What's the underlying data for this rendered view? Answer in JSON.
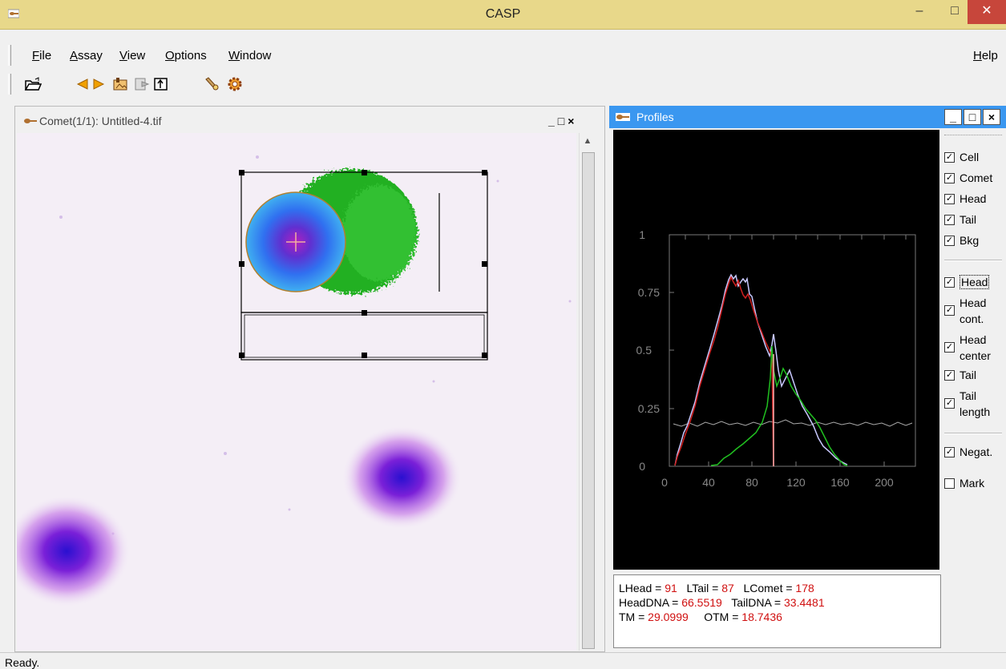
{
  "app": {
    "title": "CASP"
  },
  "window_buttons": {
    "minimize": "–",
    "maximize": "□",
    "close": "✕"
  },
  "menu": {
    "left": [
      {
        "label": "File",
        "accel": "F",
        "rest": "ile"
      },
      {
        "label": "Assay",
        "accel": "A",
        "rest": "ssay"
      },
      {
        "label": "View",
        "accel": "V",
        "rest": "iew"
      },
      {
        "label": "Options",
        "accel": "O",
        "rest": "ptions"
      },
      {
        "label": "Window",
        "accel": "W",
        "rest": "indow"
      }
    ],
    "help": {
      "label": "Help",
      "accel": "H",
      "rest": "elp"
    }
  },
  "toolbar": {
    "icons": [
      "open-folder-icon",
      "prev-arrow-icon",
      "next-arrow-icon",
      "image-icon",
      "copy-icon",
      "export-icon",
      "tools-icon",
      "settings-gear-icon"
    ]
  },
  "comet_window": {
    "title": "Comet(1/1): Untitled-4.tif",
    "controls": "_□×"
  },
  "profiles_window": {
    "title": "Profiles",
    "controls": [
      "_",
      "□",
      "×"
    ]
  },
  "plot": {
    "y_ticks": [
      "0",
      "0.25",
      "0.5",
      "0.75",
      "1"
    ],
    "x_ticks": [
      "0",
      "40",
      "80",
      "120",
      "160",
      "200"
    ],
    "colors": {
      "comet": "#c8c8ff",
      "head": "#d02020",
      "tail": "#20c020",
      "bkg": "#aaaaaa"
    }
  },
  "checkboxes": {
    "group1": [
      {
        "label": "Cell",
        "checked": true
      },
      {
        "label": "Comet",
        "checked": true
      },
      {
        "label": "Head",
        "checked": true
      },
      {
        "label": "Tail",
        "checked": true
      },
      {
        "label": "Bkg",
        "checked": true
      }
    ],
    "group2": [
      {
        "label": "Head",
        "checked": true
      },
      {
        "label1": "Head",
        "label2": "cont.",
        "checked": true
      },
      {
        "label1": "Head",
        "label2": "center",
        "checked": true
      },
      {
        "label": "Tail",
        "checked": true
      },
      {
        "label1": "Tail",
        "label2": "length",
        "checked": true
      }
    ],
    "group3": [
      {
        "label": "Negat.",
        "checked": true
      },
      {
        "label": "Mark",
        "checked": false
      }
    ]
  },
  "results": {
    "lhead_label": "LHead = ",
    "lhead": "91",
    "ltail_label": "LTail = ",
    "ltail": "87",
    "lcomet_label": "LComet = ",
    "lcomet": "178",
    "headdna_label": "HeadDNA = ",
    "headdna": "66.5519",
    "taildna_label": "TailDNA = ",
    "taildna": "33.4481",
    "tm_label": "TM = ",
    "tm": "29.0999",
    "otm_label": "OTM = ",
    "otm": "18.7436"
  },
  "status": {
    "text": "Ready."
  }
}
